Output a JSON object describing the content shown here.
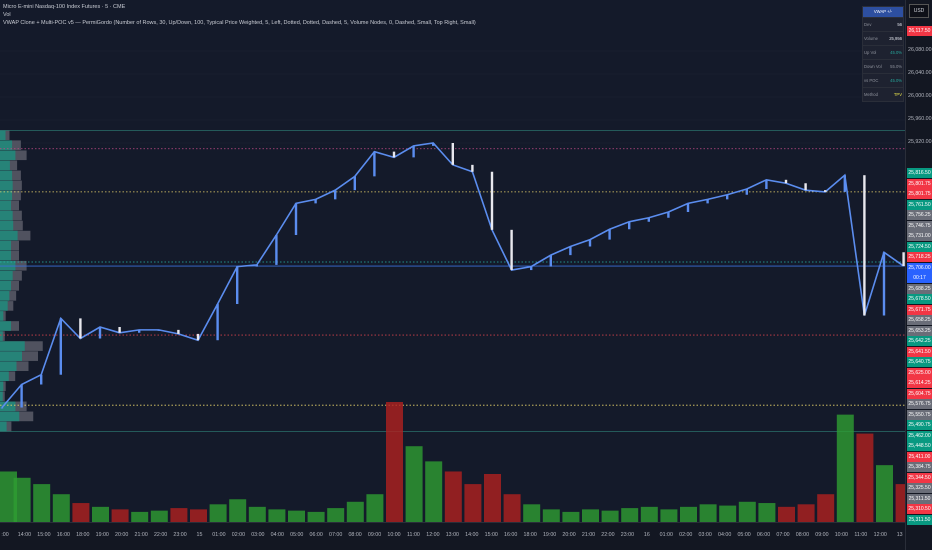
{
  "legend": {
    "symbol": "Micro E-mini Nasdaq-100 Index Futures · 5 · CME",
    "vol": "Vol",
    "indicator": "VWAP Clone + Multi-POC v5 — PermiGordo (Number of Rows, 30, Up/Down, 100, Typical Price Weighted, 5, Left, Dotted, Dotted, Dashed, 5, Volume Nodes, 0, Dashed, Small, Top Right, Small)"
  },
  "corner_button": "USD",
  "stats_table": {
    "header": "VWAP +/-",
    "rows": [
      {
        "label": "Dev",
        "value": "56",
        "color": "#e0e3eb"
      },
      {
        "label": "Volume",
        "value": "25,956",
        "color": "#e0e3eb"
      },
      {
        "label": "Up Vol",
        "value": "45.0%",
        "color": "#26a69a"
      },
      {
        "label": "Down Vol",
        "value": "55.0%",
        "color": "#8c909a"
      },
      {
        "label": "vs POC",
        "value": "45.0%",
        "color": "#26a69a"
      },
      {
        "label": "Method",
        "value": "TPV",
        "color": "#e8e34a"
      }
    ]
  },
  "colors": {
    "up": "#26a69a",
    "down": "#ef5350",
    "line": "#5b8def",
    "bg": "#141a2a",
    "vol_up": "#2e9e32",
    "vol_down": "#b0201f"
  },
  "chart_data": {
    "type": "line",
    "title": "",
    "xlabel": "",
    "ylabel": "",
    "ylim": [
      25420,
      26120
    ],
    "y_ticks": [
      "26,080.00",
      "26,040.00",
      "26,000.00",
      "25,960.00",
      "25,920.00"
    ],
    "y_tick_values": [
      26080,
      26040,
      26000,
      25960,
      25920
    ],
    "x_tick_labels": [
      ":00",
      "14:00",
      "15:00",
      "16:00",
      "18:00",
      "19:00",
      "20:00",
      "21:00",
      "22:00",
      "23:00",
      "15",
      "01:00",
      "02:00",
      "03:00",
      "04:00",
      "05:00",
      "06:00",
      "07:00",
      "08:00",
      "09:00",
      "10:00",
      "11:00",
      "12:00",
      "13:00",
      "14:00",
      "15:00",
      "16:00",
      "18:00",
      "19:00",
      "20:00",
      "21:00",
      "22:00",
      "23:00",
      "16",
      "01:00",
      "02:00",
      "03:00",
      "04:00",
      "05:00",
      "06:00",
      "07:00",
      "08:00",
      "09:00",
      "10:00",
      "11:00",
      "12:00",
      "13"
    ],
    "price_closes": [
      25460,
      25500,
      25517,
      25615,
      25580,
      25600,
      25590,
      25595,
      25595,
      25588,
      25577,
      25640,
      25705,
      25708,
      25760,
      25815,
      25822,
      25838,
      25862,
      25905,
      25895,
      25915,
      25920,
      25882,
      25870,
      25769,
      25699,
      25705,
      25725,
      25740,
      25752,
      25770,
      25783,
      25790,
      25800,
      25815,
      25822,
      25830,
      25840,
      25856,
      25850,
      25838,
      25835,
      25864,
      25620,
      25730,
      25706
    ],
    "volumes": [
      40,
      35,
      30,
      22,
      15,
      12,
      10,
      8,
      9,
      11,
      10,
      14,
      18,
      12,
      10,
      9,
      8,
      11,
      16,
      22,
      95,
      60,
      48,
      40,
      30,
      38,
      22,
      14,
      10,
      8,
      10,
      9,
      11,
      12,
      10,
      12,
      14,
      13,
      16,
      15,
      12,
      14,
      22,
      85,
      70,
      45,
      30
    ],
    "levels": [
      {
        "price": 25942,
        "style": "solid",
        "color": "#2a6f6a"
      },
      {
        "price": 25910,
        "style": "dotted",
        "color": "#c04a86"
      },
      {
        "price": 25835,
        "style": "dotted",
        "color": "#e8d36a"
      },
      {
        "price": 25713,
        "style": "dotted",
        "color": "#26b5a8"
      },
      {
        "price": 25706,
        "style": "solid",
        "color": "#3a6fd8"
      },
      {
        "price": 25586,
        "style": "dotted",
        "color": "#d0404a"
      },
      {
        "price": 25464,
        "style": "dotted",
        "color": "#e8d36a"
      },
      {
        "price": 25418,
        "style": "solid",
        "color": "#2a6f6a"
      }
    ],
    "volume_profile": [
      10,
      22,
      28,
      18,
      22,
      23,
      22,
      20,
      23,
      24,
      32,
      20,
      20,
      28,
      23,
      20,
      17,
      14,
      6,
      20,
      5,
      45,
      40,
      30,
      16,
      6,
      5,
      28,
      35,
      12
    ]
  },
  "price_labels": [
    {
      "text": "25,816.50",
      "color": "#089981"
    },
    {
      "text": "25,801.75",
      "color": "#f23645"
    },
    {
      "text": "25,801.75",
      "color": "#f23645"
    },
    {
      "text": "25,761.50",
      "color": "#089981"
    },
    {
      "text": "25,756.25",
      "color": "#6a6d78"
    },
    {
      "text": "25,746.75",
      "color": "#6a6d78"
    },
    {
      "text": "25,731.00",
      "color": "#6a6d78"
    },
    {
      "text": "25,724.50",
      "color": "#089981"
    },
    {
      "text": "25,718.25",
      "color": "#f23645"
    },
    {
      "text": "25,706.00",
      "color": "#2962ff"
    },
    {
      "text": "00:17",
      "color": "#2962ff"
    },
    {
      "text": "25,688.25",
      "color": "#6a6d78"
    },
    {
      "text": "25,678.50",
      "color": "#089981"
    },
    {
      "text": "25,671.75",
      "color": "#f23645"
    },
    {
      "text": "25,658.25",
      "color": "#6a6d78"
    },
    {
      "text": "25,653.25",
      "color": "#6a6d78"
    },
    {
      "text": "25,642.25",
      "color": "#089981"
    },
    {
      "text": "25,641.50",
      "color": "#f23645"
    },
    {
      "text": "25,640.75",
      "color": "#089981"
    },
    {
      "text": "25,625.00",
      "color": "#f23645"
    },
    {
      "text": "25,614.25",
      "color": "#f23645"
    },
    {
      "text": "25,604.75",
      "color": "#f23645"
    },
    {
      "text": "25,576.75",
      "color": "#6a6d78"
    },
    {
      "text": "25,550.75",
      "color": "#6a6d78"
    },
    {
      "text": "25,490.75",
      "color": "#089981"
    },
    {
      "text": "25,462.00",
      "color": "#089981"
    },
    {
      "text": "25,448.50",
      "color": "#089981"
    },
    {
      "text": "25,411.00",
      "color": "#f23645"
    },
    {
      "text": "25,384.75",
      "color": "#6a6d78"
    },
    {
      "text": "25,344.50",
      "color": "#f23645"
    },
    {
      "text": "25,325.50",
      "color": "#6a6d78"
    },
    {
      "text": "25,311.50",
      "color": "#6a6d78"
    },
    {
      "text": "25,310.50",
      "color": "#f23645"
    },
    {
      "text": "25,311.50",
      "color": "#089981"
    }
  ],
  "top_price_label": {
    "text": "26,117.50",
    "color": "#f23645"
  }
}
